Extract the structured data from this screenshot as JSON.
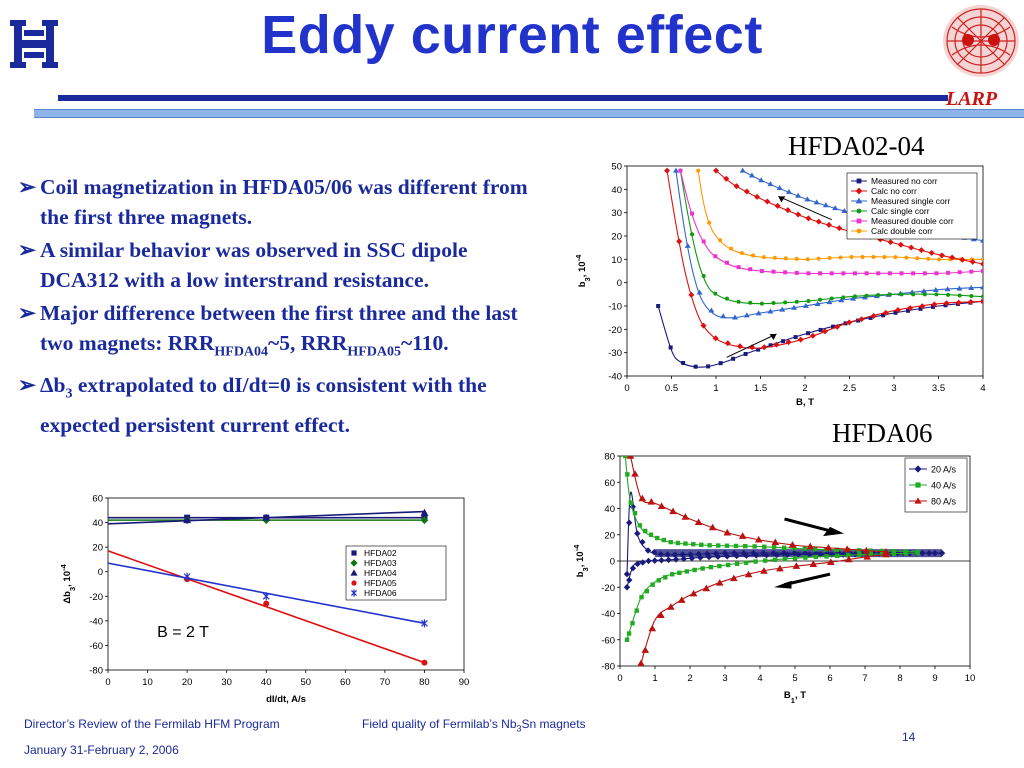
{
  "slide": {
    "title": "Eddy current effect",
    "larp": "LARP",
    "footer_left": "Director’s Review of the Fermilab HFM Program",
    "footer_date": "January 31-February 2, 2006",
    "footer_mid_prefix": "Field quality of Fermilab’s Nb",
    "footer_mid_sub": "3",
    "footer_mid_suffix": "Sn  magnets",
    "page": "14"
  },
  "bullets": [
    {
      "text": "Coil magnetization in HFDA05/06 was different from the first three magnets."
    },
    {
      "text": "A similar behavior was observed in SSC dipole DCA312 with a low interstrand resistance."
    },
    {
      "text": "Major difference between the first three and the last two magnets: RRR",
      "sub1": "HFDA04",
      "mid": "~5, RRR",
      "sub2": "HFDA05",
      "end": "~110."
    },
    {
      "delta": "Δ",
      "pre": "b",
      "sub": "3",
      "text": " extrapolated to dI/dt=0 is consistent with the expected persistent current effect."
    }
  ],
  "colors": {
    "title": "#2233cc",
    "text": "#1a2a9c",
    "larp": "#cc1111"
  },
  "icons": [
    "fermilab-logo-icon",
    "larp-emblem-icon",
    "arrow-bullet-icon"
  ],
  "chart_data": [
    {
      "type": "line",
      "title": "HFDA02-04",
      "xlabel": "B, T",
      "ylabel": "b3, 10-4",
      "xlim": [
        0,
        4
      ],
      "ylim": [
        -40,
        50
      ],
      "xticks": [
        0,
        0.5,
        1,
        1.5,
        2,
        2.5,
        3,
        3.5,
        4
      ],
      "yticks": [
        -40,
        -30,
        -20,
        -10,
        0,
        10,
        20,
        30,
        40,
        50
      ],
      "legend_position": "top-right",
      "series": [
        {
          "name": "Measured no corr",
          "color": "#1a1a7a",
          "marker": "square",
          "x": [
            0.35,
            0.5,
            0.6,
            0.75,
            0.9,
            1.1,
            1.3,
            1.6,
            2.0,
            2.5,
            3.0,
            3.5,
            4.0
          ],
          "y": [
            -10,
            -29,
            -34,
            -36,
            -36,
            -34,
            -31,
            -27,
            -22,
            -17,
            -13,
            -10,
            -8
          ]
        },
        {
          "name": "Calc no corr",
          "color": "#dd1111",
          "marker": "diamond",
          "x": [
            0.45,
            0.55,
            0.65,
            0.75,
            0.85,
            1.0,
            1.2,
            1.5,
            2.0,
            2.5,
            3.0,
            3.5,
            4.0
          ],
          "y": [
            48,
            25,
            5,
            -9,
            -18,
            -24,
            -27,
            -28,
            -24,
            -17,
            -12,
            -9,
            -8
          ]
        },
        {
          "name": "Measured single corr",
          "color": "#3366cc",
          "marker": "triangle",
          "x": [
            0.55,
            0.65,
            0.75,
            0.85,
            1.0,
            1.2,
            1.5,
            2.0,
            2.5,
            3.0,
            3.5,
            4.0
          ],
          "y": [
            48,
            22,
            3,
            -8,
            -14,
            -15,
            -13,
            -10,
            -7,
            -5,
            -3,
            -2
          ]
        },
        {
          "name": "Calc single corr",
          "color": "#119911",
          "marker": "circle",
          "x": [
            0.6,
            0.7,
            0.8,
            0.9,
            1.0,
            1.2,
            1.5,
            2.0,
            2.5,
            3.0,
            3.5,
            4.0
          ],
          "y": [
            48,
            26,
            9,
            -1,
            -5,
            -8,
            -9,
            -8,
            -6,
            -5,
            -5,
            -6
          ]
        },
        {
          "name": "Measured double corr",
          "color": "#ee33cc",
          "marker": "square",
          "x": [
            0.6,
            0.7,
            0.8,
            0.9,
            1.0,
            1.2,
            1.5,
            2.0,
            2.5,
            3.0,
            3.5,
            4.0
          ],
          "y": [
            48,
            33,
            22,
            15,
            11,
            7,
            5,
            4,
            4,
            4,
            4,
            5
          ]
        },
        {
          "name": "Calc double corr",
          "color": "#ff9900",
          "marker": "circle",
          "x": [
            0.8,
            0.85,
            0.9,
            0.95,
            1.0,
            1.1,
            1.25,
            1.5,
            2.0,
            2.5,
            3.0,
            3.5,
            4.0
          ],
          "y": [
            48,
            36,
            28,
            23,
            20,
            16,
            13,
            11,
            10,
            11,
            11,
            10,
            10
          ]
        },
        {
          "name": "",
          "color": "#dd1111",
          "marker": "diamond",
          "x": [
            1.0,
            1.2,
            1.5,
            2.0,
            2.5,
            3.0,
            3.5,
            4.0
          ],
          "y": [
            48,
            42,
            36,
            28,
            22,
            17,
            12,
            8
          ]
        },
        {
          "name": "",
          "color": "#3366cc",
          "marker": "triangle",
          "x": [
            1.3,
            1.5,
            2.0,
            2.5,
            3.0,
            3.5,
            4.0
          ],
          "y": [
            48,
            44,
            36,
            30,
            25,
            21,
            18
          ]
        }
      ]
    },
    {
      "type": "line",
      "title": "HFDA06",
      "xlabel": "B1, T",
      "ylabel": "b3, 10-4",
      "xlim": [
        0,
        10
      ],
      "ylim": [
        -80,
        80
      ],
      "xticks": [
        0,
        1,
        2,
        3,
        4,
        5,
        6,
        7,
        8,
        9,
        10
      ],
      "yticks": [
        -80,
        -60,
        -40,
        -20,
        0,
        20,
        40,
        60,
        80
      ],
      "legend_position": "top-right",
      "series": [
        {
          "name": "20 A/s",
          "color": "#1a1a7a",
          "marker": "diamond",
          "x": [
            0.2,
            0.3,
            0.5,
            0.8,
            1.2,
            2,
            3,
            4,
            5,
            6,
            7,
            8,
            9
          ],
          "y": [
            -10,
            52,
            20,
            8,
            5,
            5,
            6,
            6,
            6,
            6,
            6,
            6,
            6
          ]
        },
        {
          "name": "",
          "color": "#1a1a7a",
          "marker": "diamond",
          "x": [
            0.2,
            0.4,
            0.8,
            1.5,
            2.5,
            3.5,
            5,
            6.5,
            8,
            9.2
          ],
          "y": [
            -20,
            -3,
            0,
            1,
            3,
            4,
            5,
            5,
            6,
            6
          ]
        },
        {
          "name": "40 A/s",
          "color": "#22aa22",
          "marker": "square",
          "x": [
            0.15,
            0.3,
            0.6,
            1.0,
            1.5,
            2.5,
            4,
            5.5,
            7,
            8.5
          ],
          "y": [
            80,
            45,
            25,
            18,
            14,
            12,
            11,
            9,
            8,
            7
          ]
        },
        {
          "name": "",
          "color": "#22aa22",
          "marker": "square",
          "x": [
            0.2,
            0.6,
            1.0,
            1.5,
            2.5,
            4,
            5.5,
            7,
            8.5
          ],
          "y": [
            -60,
            -28,
            -16,
            -10,
            -5,
            0,
            3,
            5,
            6
          ]
        },
        {
          "name": "80 A/s",
          "color": "#bb1111",
          "marker": "triangle",
          "x": [
            0.3,
            0.6,
            1.0,
            1.5,
            2,
            3,
            4,
            5,
            6,
            7,
            7.6
          ],
          "y": [
            80,
            48,
            44,
            38,
            32,
            22,
            16,
            12,
            10,
            8,
            7
          ]
        },
        {
          "name": "",
          "color": "#bb1111",
          "marker": "triangle",
          "x": [
            0.6,
            1.0,
            1.5,
            2,
            3,
            4,
            5,
            6,
            7,
            7.6
          ],
          "y": [
            -78,
            -45,
            -34,
            -26,
            -15,
            -8,
            -4,
            -1,
            3,
            5
          ]
        }
      ]
    },
    {
      "type": "scatter",
      "title": "",
      "xlabel": "dI/dt, A/s",
      "ylabel": "Δb3, 10-4",
      "xlim": [
        0,
        90
      ],
      "ylim": [
        -80,
        60
      ],
      "xticks": [
        0,
        10,
        20,
        30,
        40,
        50,
        60,
        70,
        80,
        90
      ],
      "yticks": [
        -80,
        -60,
        -40,
        -20,
        0,
        20,
        40,
        60
      ],
      "legend_position": "center-right",
      "annotation": "B = 2 T",
      "series": [
        {
          "name": "HFDA02",
          "color": "#1a1a7a",
          "marker": "square",
          "x": [
            20,
            40,
            80
          ],
          "y": [
            44,
            44,
            44
          ],
          "fit": [
            44,
            44
          ]
        },
        {
          "name": "HFDA03",
          "color": "#117711",
          "marker": "diamond",
          "x": [
            20,
            40,
            80
          ],
          "y": [
            42,
            42,
            42
          ],
          "fit": [
            42,
            42
          ]
        },
        {
          "name": "HFDA04",
          "color": "#1a1a7a",
          "marker": "triangle",
          "x": [
            20,
            40,
            80
          ],
          "y": [
            42,
            44,
            48
          ],
          "fit": [
            39,
            49
          ]
        },
        {
          "name": "HFDA05",
          "color": "#dd1111",
          "marker": "circle",
          "x": [
            20,
            40,
            80
          ],
          "y": [
            -6,
            -26,
            -74
          ],
          "fit": [
            17,
            -74
          ]
        },
        {
          "name": "HFDA06",
          "color": "#2233cc",
          "marker": "star",
          "x": [
            20,
            40,
            80
          ],
          "y": [
            -4,
            -20,
            -42
          ],
          "fit": [
            7,
            -42
          ]
        }
      ]
    }
  ]
}
